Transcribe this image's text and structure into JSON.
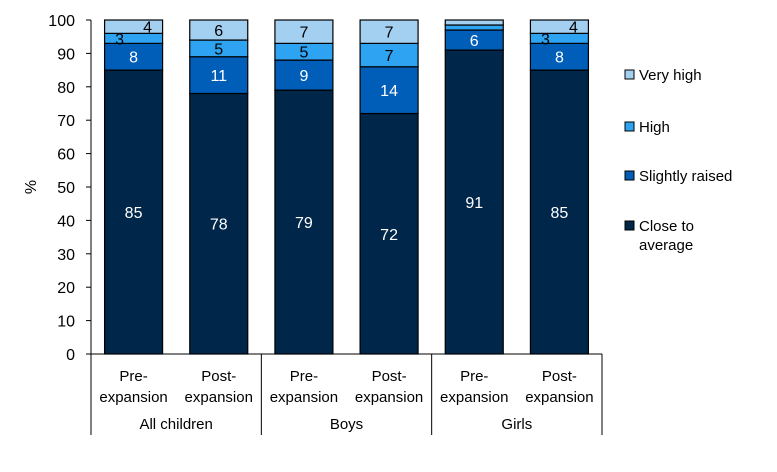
{
  "chart_data": {
    "type": "bar",
    "stacked": true,
    "ylabel": "%",
    "ylim": [
      0,
      100
    ],
    "yticks": [
      0,
      10,
      20,
      30,
      40,
      50,
      60,
      70,
      80,
      90,
      100
    ],
    "grid": false,
    "legend_placement": "right",
    "groups": [
      "All children",
      "Boys",
      "Girls"
    ],
    "categories": [
      {
        "group": "All children",
        "label": [
          "Pre-",
          "expansion"
        ]
      },
      {
        "group": "All children",
        "label": [
          "Post-",
          "expansion"
        ]
      },
      {
        "group": "Boys",
        "label": [
          "Pre-",
          "expansion"
        ]
      },
      {
        "group": "Boys",
        "label": [
          "Post-",
          "expansion"
        ]
      },
      {
        "group": "Girls",
        "label": [
          "Pre-",
          "expansion"
        ]
      },
      {
        "group": "Girls",
        "label": [
          "Post-",
          "expansion"
        ]
      }
    ],
    "series": [
      {
        "name": "Close to average",
        "legend": [
          "Close to",
          "average"
        ],
        "color": "#00264A",
        "label_color": "#ffffff",
        "values": [
          85,
          78,
          79,
          72,
          91,
          85
        ],
        "labels": [
          "85",
          "78",
          "79",
          "72",
          "91",
          "85"
        ]
      },
      {
        "name": "Slightly raised",
        "legend": [
          "Slightly raised"
        ],
        "color": "#005EB8",
        "label_color": "#ffffff",
        "values": [
          8,
          11,
          9,
          14,
          6,
          8
        ],
        "labels": [
          "8",
          "11",
          "9",
          "14",
          "6",
          "8"
        ]
      },
      {
        "name": "High",
        "legend": [
          "High"
        ],
        "color": "#2EA3F2",
        "label_color": "#000000",
        "values": [
          3,
          5,
          5,
          7,
          1.5,
          3
        ],
        "labels": [
          "3",
          "5",
          "5",
          "7",
          "",
          "3"
        ]
      },
      {
        "name": "Very high",
        "legend": [
          "Very high"
        ],
        "color": "#A3CFF0",
        "label_color": "#000000",
        "values": [
          4,
          6,
          7,
          7,
          1.5,
          4
        ],
        "labels": [
          "4",
          "6",
          "7",
          "7",
          "",
          "4"
        ]
      }
    ]
  }
}
